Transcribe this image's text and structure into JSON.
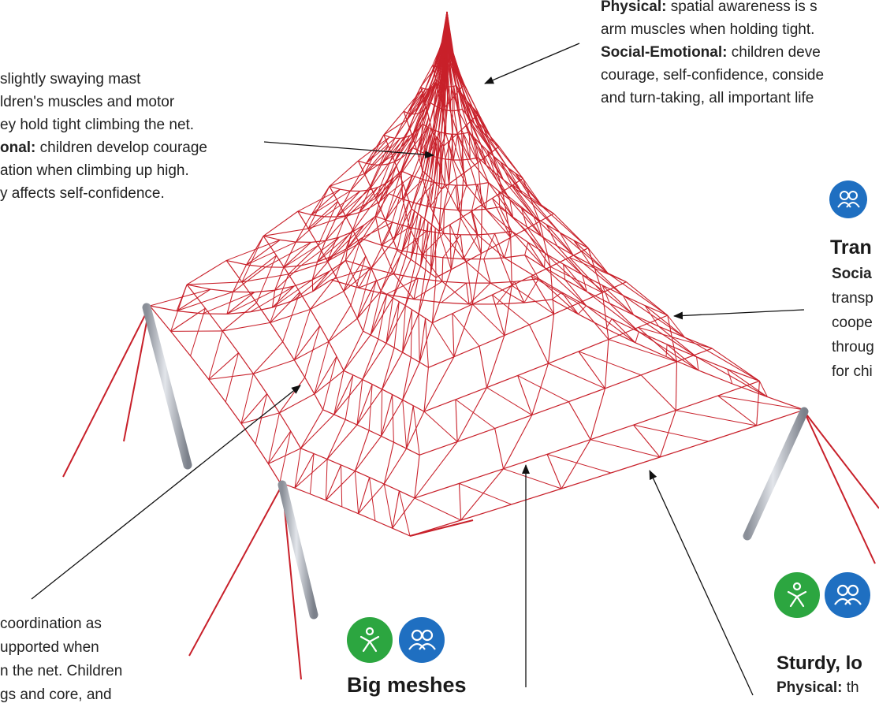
{
  "annotations": [
    {
      "lines": [
        {
          "text": "slightly swaying mast"
        },
        {
          "text": "ldren's muscles and motor"
        },
        {
          "text": "ey hold tight climbing the net."
        },
        {
          "bold": "onal:",
          "text": " children develop courage"
        },
        {
          "text": "ation when climbing up high."
        },
        {
          "text": "y affects self-confidence."
        }
      ]
    },
    {
      "lines": [
        {
          "bold": "Physical:",
          "text": " spatial awareness is s"
        },
        {
          "text": "arm muscles when holding tight."
        },
        {
          "bold": "Social-Emotional:",
          "text": " children deve"
        },
        {
          "text": "courage, self-confidence, conside"
        },
        {
          "text": "and turn-taking, all important life"
        }
      ]
    },
    {
      "heading": "Tran",
      "lines": [
        {
          "bold": "Socia"
        },
        {
          "text": "transp"
        },
        {
          "text": "coope"
        },
        {
          "text": "throug"
        },
        {
          "text": "for chi"
        }
      ]
    },
    {
      "lines": [
        {
          "text": "coordination as"
        },
        {
          "text": "upported when"
        },
        {
          "text": "n the net. Children"
        },
        {
          "text": "gs and core, and"
        }
      ]
    },
    {
      "heading": "Big meshes"
    },
    {
      "heading": "Sturdy, lo",
      "lines": [
        {
          "bold": "Physical:",
          "text": " th"
        }
      ]
    }
  ]
}
